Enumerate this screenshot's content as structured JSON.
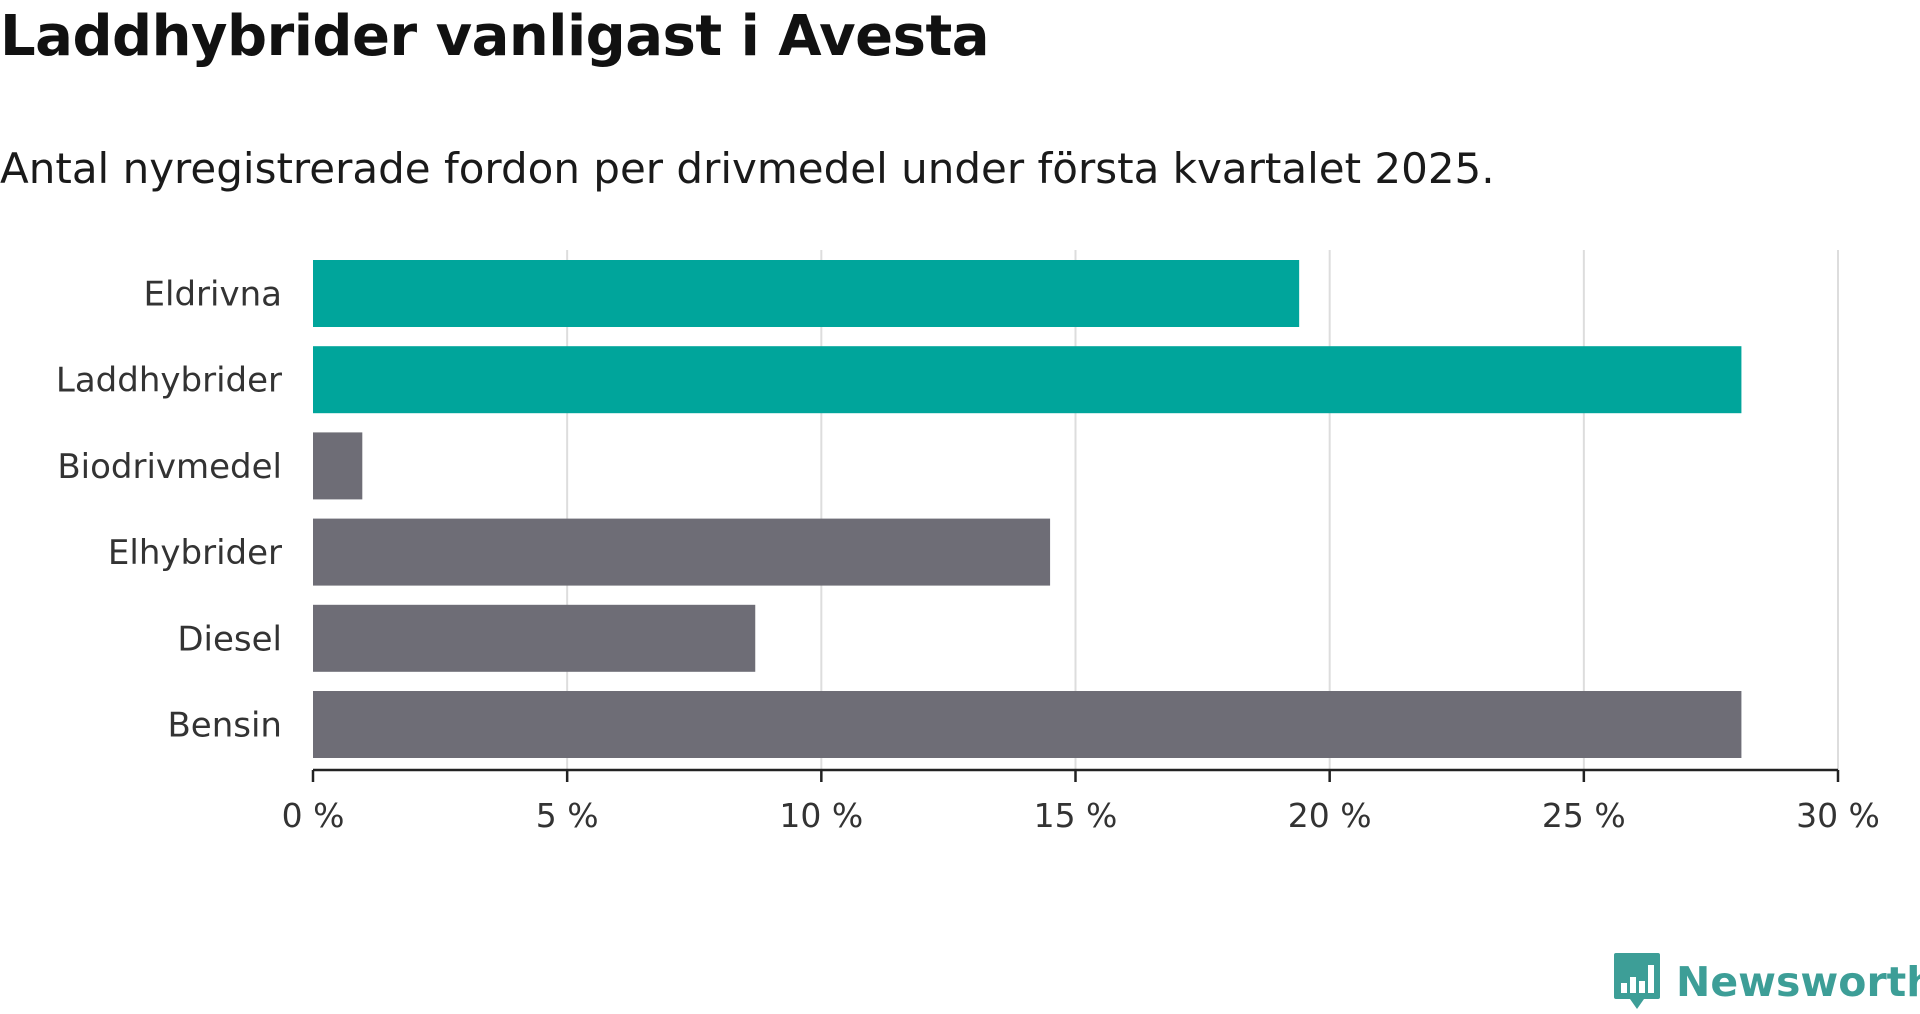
{
  "header": {
    "title": "Laddhybrider vanligast i Avesta",
    "subtitle": "Antal nyregistrerade fordon per drivmedel under första kvartalet 2025."
  },
  "brand": {
    "name": "Newsworthy",
    "icon": "newsworthy-logo-icon",
    "color": "#3d9e97"
  },
  "chart_data": {
    "type": "bar",
    "orientation": "horizontal",
    "categories": [
      "Eldrivna",
      "Laddhybrider",
      "Biodrivmedel",
      "Elhybrider",
      "Diesel",
      "Bensin"
    ],
    "values": [
      19.4,
      28.1,
      0.97,
      14.5,
      8.7,
      28.1
    ],
    "highlighted": [
      true,
      true,
      false,
      false,
      false,
      false
    ],
    "colors": {
      "highlight": "#00a59b",
      "default": "#6e6d76",
      "grid": "#dddddd",
      "axis": "#222222"
    },
    "xlim": [
      0,
      30
    ],
    "xticks": [
      0,
      5,
      10,
      15,
      20,
      25,
      30
    ],
    "xtick_labels": [
      "0 %",
      "5 %",
      "10 %",
      "15 %",
      "20 %",
      "25 %",
      "30 %"
    ],
    "grid": true
  }
}
